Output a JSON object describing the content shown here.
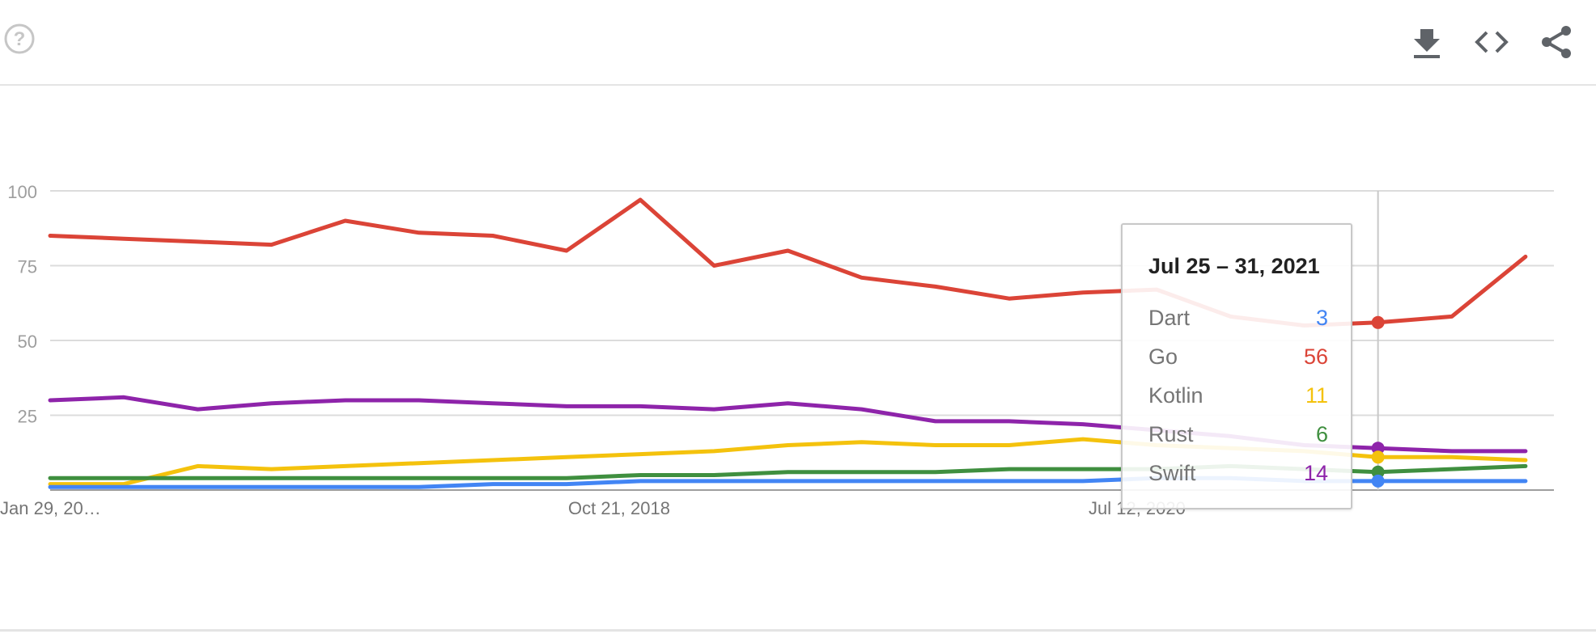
{
  "toolbar": {
    "icons": [
      "help-icon",
      "download-icon",
      "embed-code-icon",
      "share-icon"
    ]
  },
  "tooltip": {
    "date": "Jul 25 – 31, 2021",
    "rows": [
      {
        "name": "Dart",
        "value": "3",
        "color": "#4285f4"
      },
      {
        "name": "Go",
        "value": "56",
        "color": "#db4437"
      },
      {
        "name": "Kotlin",
        "value": "11",
        "color": "#f4c20d"
      },
      {
        "name": "Rust",
        "value": "6",
        "color": "#3f8f3f"
      },
      {
        "name": "Swift",
        "value": "14",
        "color": "#8e24aa"
      }
    ]
  },
  "chart_data": {
    "type": "line",
    "title": "",
    "xlabel": "",
    "ylabel": "",
    "ylim": [
      0,
      100
    ],
    "yticks": [
      25,
      50,
      75,
      100
    ],
    "xtick_labels": [
      "Jan 29, 20…",
      "Oct 21, 2018",
      "Jul 12, 2020"
    ],
    "grid": true,
    "legend": "none",
    "hover_date": "2021-07-25",
    "x": [
      "2017-01-29",
      "2017-04-30",
      "2017-07-30",
      "2017-10-29",
      "2018-01-28",
      "2018-04-29",
      "2018-07-29",
      "2018-10-28",
      "2019-01-27",
      "2019-04-28",
      "2019-07-28",
      "2019-10-27",
      "2020-01-26",
      "2020-04-26",
      "2020-07-26",
      "2020-10-25",
      "2021-01-24",
      "2021-04-25",
      "2021-07-25",
      "2021-10-24",
      "2022-01-23"
    ],
    "series": [
      {
        "name": "Go",
        "color": "#db4437",
        "values": [
          85,
          84,
          83,
          82,
          90,
          86,
          85,
          80,
          97,
          75,
          80,
          71,
          68,
          64,
          66,
          67,
          58,
          55,
          56,
          58,
          78
        ]
      },
      {
        "name": "Swift",
        "color": "#8e24aa",
        "values": [
          30,
          31,
          27,
          29,
          30,
          30,
          29,
          28,
          28,
          27,
          29,
          27,
          23,
          23,
          22,
          20,
          18,
          15,
          14,
          13,
          13
        ]
      },
      {
        "name": "Kotlin",
        "color": "#f4c20d",
        "values": [
          2,
          2,
          8,
          7,
          8,
          9,
          10,
          11,
          12,
          13,
          15,
          16,
          15,
          15,
          17,
          15,
          14,
          13,
          11,
          11,
          10
        ]
      },
      {
        "name": "Rust",
        "color": "#3f8f3f",
        "values": [
          4,
          4,
          4,
          4,
          4,
          4,
          4,
          4,
          5,
          5,
          6,
          6,
          6,
          7,
          7,
          7,
          8,
          7,
          6,
          7,
          8
        ]
      },
      {
        "name": "Dart",
        "color": "#4285f4",
        "values": [
          1,
          1,
          1,
          1,
          1,
          1,
          2,
          2,
          3,
          3,
          3,
          3,
          3,
          3,
          3,
          4,
          4,
          3,
          3,
          3,
          3
        ]
      }
    ]
  }
}
